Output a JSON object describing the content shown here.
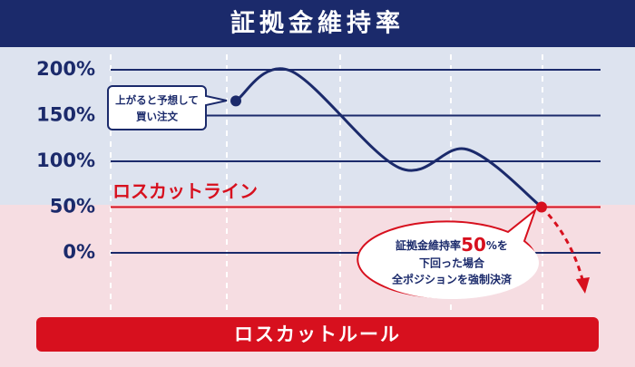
{
  "chart_data": {
    "type": "line",
    "title": "証拠金維持率",
    "categories": [
      null,
      null,
      null,
      null,
      null
    ],
    "series": [
      {
        "color": "#1b2a6b",
        "values": [
          166,
          199,
          93,
          113,
          50
        ]
      }
    ],
    "ylim": [
      0,
      200
    ],
    "yticks": [
      {
        "value": 0,
        "label": "0%"
      },
      {
        "value": 50,
        "label": "50%"
      },
      {
        "value": 100,
        "label": "100%"
      },
      {
        "value": 150,
        "label": "150%"
      },
      {
        "value": 200,
        "label": "200%"
      }
    ],
    "grid": true,
    "loss_cut_line": {
      "label": "ロスカットライン",
      "value": 50,
      "color": "#d7101e"
    },
    "buy_note": [
      "上がると予想して",
      "買い注文"
    ],
    "loss_note": {
      "lead": "証拠金維持率",
      "big": "50",
      "tail": "%を",
      "lines": [
        "下回った場合",
        "全ポジションを強制決済"
      ]
    },
    "banner": "ロスカットルール"
  }
}
